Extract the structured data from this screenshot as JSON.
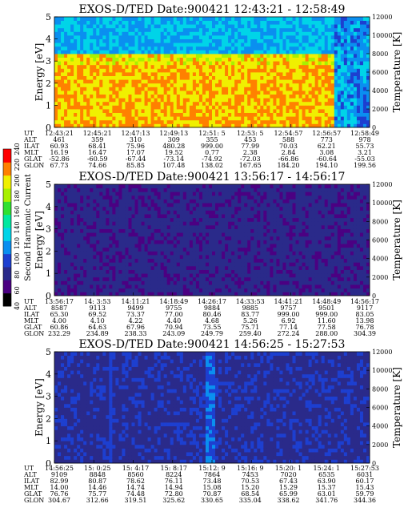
{
  "colorbar": {
    "label": "Second Harmonic Current",
    "ticks": [
      "40",
      "60",
      "80",
      "100",
      "120",
      "140",
      "160",
      "180",
      "200",
      "220",
      "240"
    ],
    "colors": [
      "#000000",
      "#4b0082",
      "#2a2a8a",
      "#1d3fd0",
      "#0a8ff0",
      "#00d4e8",
      "#00e8a0",
      "#30e030",
      "#a8f000",
      "#f0f000",
      "#ff8000",
      "#ff0000"
    ]
  },
  "chart_data": [
    {
      "type": "heatmap",
      "title": "EXOS-D/TED Date:900421 12:43:21 - 12:58:49",
      "ylabel": "Energy [eV]",
      "y2label": "Temperature [K]",
      "ylim": [
        0,
        5
      ],
      "yticks": [
        "0",
        "1",
        "2",
        "3",
        "4",
        "5"
      ],
      "y2lim": [
        0,
        12000
      ],
      "y2ticks": [
        "0",
        "2000",
        "4000",
        "6000",
        "8000",
        "10000",
        "12000"
      ],
      "cmap_levels": {
        "base": 9,
        "upper": 4.5,
        "boundary_ev": 3.3
      },
      "ephemeris": {
        "labels": [
          "UT",
          "ALT",
          "ILAT",
          "MLT",
          "GLAT",
          "GLON"
        ],
        "columns": [
          [
            "12:43:21",
            "461",
            "60.93",
            "16.19",
            "-52.86",
            "67.73"
          ],
          [
            "12:45:21",
            "359",
            "68.41",
            "16.47",
            "-60.59",
            "74.66"
          ],
          [
            "12:47:13",
            "310",
            "75.96",
            "17.07",
            "-67.44",
            "85.85"
          ],
          [
            "12:49:13",
            "309",
            "480.28",
            "19.52",
            "-73.14",
            "107.48"
          ],
          [
            "12:51: 5",
            "355",
            "999.00",
            "0.77",
            "-74.92",
            "138.02"
          ],
          [
            "12:53: 5",
            "453",
            "77.99",
            "2.38",
            "-72.03",
            "167.65"
          ],
          [
            "12:54:57",
            "588",
            "70.03",
            "2.84",
            "-66.86",
            "184.20"
          ],
          [
            "12:56:57",
            "773",
            "62.21",
            "3.08",
            "-60.64",
            "194.10"
          ],
          [
            "12:58:49",
            "978",
            "55.73",
            "3.21",
            "-55.03",
            "199.56"
          ]
        ]
      }
    },
    {
      "type": "heatmap",
      "title": "EXOS-D/TED Date:900421 13:56:17 - 14:56:17",
      "ylabel": "Energy [eV]",
      "y2label": "Temperature [K]",
      "ylim": [
        0,
        5
      ],
      "yticks": [
        "0",
        "1",
        "2",
        "3",
        "4",
        "5"
      ],
      "y2lim": [
        0,
        12000
      ],
      "y2ticks": [
        "0",
        "2000",
        "4000",
        "6000",
        "8000",
        "10000",
        "12000"
      ],
      "cmap_levels": {
        "base": 1.5
      },
      "ephemeris": {
        "labels": [
          "UT",
          "ALT",
          "ILAT",
          "MLT",
          "GLAT",
          "GLON"
        ],
        "columns": [
          [
            "13:56:17",
            "8587",
            "65.30",
            "4.00",
            "60.86",
            "232.29"
          ],
          [
            "14: 3:53",
            "9113",
            "69.52",
            "4.10",
            "64.63",
            "234.89"
          ],
          [
            "14:11:21",
            "9499",
            "73.37",
            "4.22",
            "67.96",
            "238.33"
          ],
          [
            "14:18:49",
            "9755",
            "77.00",
            "4.40",
            "70.94",
            "243.09"
          ],
          [
            "14:26:17",
            "9884",
            "80.46",
            "4.68",
            "73.55",
            "249.79"
          ],
          [
            "14:33:53",
            "9885",
            "83.77",
            "5.26",
            "75.71",
            "259.40"
          ],
          [
            "14:41:21",
            "9757",
            "999.00",
            "6.92",
            "77.14",
            "272.24"
          ],
          [
            "14:48:49",
            "9501",
            "999.00",
            "11.60",
            "77.58",
            "288.00"
          ],
          [
            "14:56:17",
            "9117",
            "83.05",
            "13.98",
            "76.78",
            "304.39"
          ]
        ]
      }
    },
    {
      "type": "heatmap",
      "title": "EXOS-D/TED Date:900421 14:56:25 - 15:27:53",
      "ylabel": "Energy [eV]",
      "y2label": "Temperature [K]",
      "ylim": [
        0,
        5
      ],
      "yticks": [
        "0",
        "1",
        "2",
        "3",
        "4",
        "5"
      ],
      "y2lim": [
        0,
        12000
      ],
      "y2ticks": [
        "0",
        "2000",
        "4000",
        "6000",
        "8000",
        "10000",
        "12000"
      ],
      "cmap_levels": {
        "base": 1.8,
        "streak_at": [
          0.18,
          0.5
        ]
      },
      "ephemeris": {
        "labels": [
          "UT",
          "ALT",
          "ILAT",
          "MLT",
          "GLAT",
          "GLON"
        ],
        "columns": [
          [
            "14:56:25",
            "9109",
            "82.99",
            "14.00",
            "76.76",
            "304.67"
          ],
          [
            "15: 0:25",
            "8848",
            "80.87",
            "14.46",
            "75.77",
            "312.66"
          ],
          [
            "15: 4:17",
            "8560",
            "78.62",
            "14.74",
            "74.48",
            "319.51"
          ],
          [
            "15: 8:17",
            "8224",
            "76.11",
            "14.94",
            "72.80",
            "325.62"
          ],
          [
            "15:12: 9",
            "7864",
            "73.48",
            "15.08",
            "70.87",
            "330.65"
          ],
          [
            "15:16: 9",
            "7453",
            "70.53",
            "15.20",
            "68.54",
            "335.04"
          ],
          [
            "15:20: 1",
            "7020",
            "67.43",
            "15.29",
            "65.99",
            "338.62"
          ],
          [
            "15:24: 1",
            "6535",
            "63.90",
            "15.37",
            "63.01",
            "341.76"
          ],
          [
            "15:27:53",
            "6031",
            "60.17",
            "15.43",
            "59.79",
            "344.36"
          ]
        ]
      }
    }
  ]
}
